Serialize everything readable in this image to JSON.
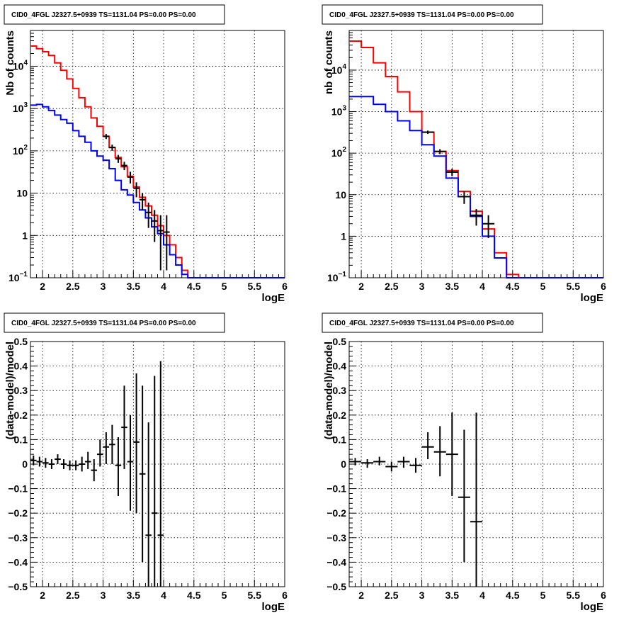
{
  "chart_data": [
    {
      "id": "top-left",
      "type": "line",
      "title": "CID0_4FGL J2327.5+0939 TS=1131.04 PS=0.00 PS=0.00",
      "xlabel": "logE",
      "ylabel": "Nb of counts",
      "xlim": [
        1.8,
        6.0
      ],
      "ylim": [
        0.1,
        70000
      ],
      "ylog": true,
      "grid": true,
      "xticks": [
        "2",
        "2.5",
        "3",
        "3.5",
        "4",
        "4.5",
        "5",
        "5.5",
        "6"
      ],
      "xtick_values": [
        2,
        2.5,
        3,
        3.5,
        4,
        4.5,
        5,
        5.5,
        6
      ],
      "yticks": [
        "10^-1",
        "1",
        "10",
        "10^2",
        "10^3",
        "10^4"
      ],
      "ytick_values": [
        0.1,
        1,
        10,
        100,
        1000,
        10000
      ],
      "series": [
        {
          "color": "#ff0000",
          "style": "hist",
          "edges": [
            1.8,
            1.9,
            2.0,
            2.1,
            2.2,
            2.3,
            2.4,
            2.5,
            2.6,
            2.7,
            2.8,
            2.9,
            3.0,
            3.1,
            3.2,
            3.3,
            3.4,
            3.5,
            3.6,
            3.7,
            3.8,
            3.9,
            4.0,
            4.1,
            4.2,
            4.3,
            4.4,
            4.5,
            4.6,
            4.7,
            4.8,
            4.9,
            5.0,
            5.1,
            5.2,
            5.3,
            5.4,
            5.5,
            5.6,
            5.7,
            5.8,
            5.9,
            6.0
          ],
          "values": [
            30000,
            26000,
            22000,
            18000,
            12000,
            8000,
            5000,
            3000,
            1800,
            1100,
            600,
            380,
            220,
            120,
            70,
            42,
            25,
            14,
            8,
            5,
            3,
            1.7,
            1.0,
            0.6,
            0.3,
            0.15,
            0.1,
            0.1,
            0.1,
            0.1,
            0.1,
            0.1,
            0.1,
            0.1,
            0.1,
            0.1,
            0.1,
            0.1,
            0.1,
            0.1,
            0.1,
            0.1
          ]
        },
        {
          "color": "#0000ff",
          "style": "hist",
          "edges": [
            1.8,
            1.9,
            2.0,
            2.1,
            2.2,
            2.3,
            2.4,
            2.5,
            2.6,
            2.7,
            2.8,
            2.9,
            3.0,
            3.1,
            3.2,
            3.3,
            3.4,
            3.5,
            3.6,
            3.7,
            3.8,
            3.9,
            4.0,
            4.1,
            4.2,
            4.3,
            4.4,
            4.5,
            4.6,
            4.7,
            4.8,
            4.9,
            5.0,
            5.1,
            5.2,
            5.3,
            5.4,
            5.5,
            5.6,
            5.7,
            5.8,
            5.9,
            6.0
          ],
          "values": [
            1200,
            1250,
            1100,
            900,
            700,
            550,
            450,
            300,
            220,
            160,
            100,
            75,
            60,
            38,
            20,
            12,
            9,
            6,
            4,
            2.6,
            1.6,
            1.1,
            0.6,
            0.35,
            0.2,
            0.12,
            0.1,
            0.1,
            0.1,
            0.1,
            0.1,
            0.1,
            0.1,
            0.1,
            0.1,
            0.1,
            0.1,
            0.1,
            0.1,
            0.1,
            0.1,
            0.1
          ]
        },
        {
          "color": "#000000",
          "style": "points",
          "x": [
            3.05,
            3.15,
            3.25,
            3.35,
            3.45,
            3.55,
            3.65,
            3.75,
            3.85,
            3.95,
            4.05
          ],
          "y": [
            220,
            120,
            65,
            45,
            24,
            13,
            7,
            3.5,
            2.2,
            1.3,
            1.2
          ],
          "ylo": [
            190,
            100,
            52,
            35,
            17,
            8,
            4,
            1.5,
            0.7,
            0.15,
            0.15
          ],
          "yhi": [
            250,
            140,
            80,
            55,
            32,
            18,
            10,
            6,
            4,
            3,
            3
          ],
          "xerr": 0.05
        }
      ]
    },
    {
      "id": "top-right",
      "type": "line",
      "title": "CID0_4FGL J2327.5+0939 TS=1131.04 PS=0.00 PS=0.00",
      "xlabel": "logE",
      "ylabel": "nb of counts",
      "xlim": [
        1.8,
        6.0
      ],
      "ylim": [
        0.1,
        90000
      ],
      "ylog": true,
      "grid": true,
      "xticks": [
        "2",
        "2.5",
        "3",
        "3.5",
        "4",
        "4.5",
        "5",
        "5.5",
        "6"
      ],
      "xtick_values": [
        2,
        2.5,
        3,
        3.5,
        4,
        4.5,
        5,
        5.5,
        6
      ],
      "yticks": [
        "10^-1",
        "1",
        "10",
        "10^2",
        "10^3",
        "10^4"
      ],
      "ytick_values": [
        0.1,
        1,
        10,
        100,
        1000,
        10000
      ],
      "series": [
        {
          "color": "#ff0000",
          "style": "hist",
          "edges": [
            1.8,
            2.0,
            2.2,
            2.4,
            2.6,
            2.8,
            3.0,
            3.2,
            3.4,
            3.6,
            3.8,
            4.0,
            4.2,
            4.4,
            4.6,
            4.8,
            5.0,
            5.2,
            5.4,
            5.6,
            5.8,
            6.0
          ],
          "values": [
            50000,
            35000,
            15000,
            7000,
            3000,
            1000,
            320,
            110,
            38,
            12,
            4,
            1.5,
            0.4,
            0.12,
            0.1,
            0.1,
            0.1,
            0.1,
            0.1,
            0.1,
            0.1
          ],
          "style_note": ""
        },
        {
          "color": "#0000ff",
          "style": "hist",
          "edges": [
            1.8,
            2.0,
            2.2,
            2.4,
            2.6,
            2.8,
            3.0,
            3.2,
            3.4,
            3.6,
            3.8,
            4.0,
            4.2,
            4.4,
            4.6,
            4.8,
            5.0,
            5.2,
            5.4,
            5.6,
            5.8,
            6.0
          ],
          "values": [
            2300,
            2300,
            1500,
            1000,
            600,
            350,
            160,
            85,
            25,
            9,
            3,
            1,
            0.3,
            0.1,
            0.1,
            0.1,
            0.1,
            0.1,
            0.1,
            0.1,
            0.1
          ]
        },
        {
          "color": "#000000",
          "style": "points",
          "x": [
            3.1,
            3.3,
            3.5,
            3.7,
            3.9,
            4.1
          ],
          "y": [
            320,
            110,
            35,
            9,
            3.2,
            2.0
          ],
          "ylo": [
            290,
            95,
            28,
            6,
            1.8,
            0.9
          ],
          "yhi": [
            350,
            125,
            42,
            12,
            4.5,
            3.2
          ],
          "xerr": 0.1
        }
      ]
    },
    {
      "id": "bottom-left",
      "type": "scatter",
      "title": "CID0_4FGL J2327.5+0939 TS=1131.04 PS=0.00 PS=0.00",
      "xlabel": "logE",
      "ylabel": "(data-model)/model",
      "xlim": [
        1.8,
        6.0
      ],
      "ylim": [
        -0.5,
        0.5
      ],
      "ylog": false,
      "grid": true,
      "xticks": [
        "2",
        "2.5",
        "3",
        "3.5",
        "4",
        "4.5",
        "5",
        "5.5",
        "6"
      ],
      "xtick_values": [
        2,
        2.5,
        3,
        3.5,
        4,
        4.5,
        5,
        5.5,
        6
      ],
      "yticks": [
        "-0.5",
        "-0.4",
        "-0.3",
        "-0.2",
        "-0.1",
        "0",
        "0.1",
        "0.2",
        "0.3",
        "0.4",
        "0.5"
      ],
      "ytick_values": [
        -0.5,
        -0.4,
        -0.3,
        -0.2,
        -0.1,
        0,
        0.1,
        0.2,
        0.3,
        0.4,
        0.5
      ],
      "series": [
        {
          "color": "#000000",
          "style": "points",
          "x": [
            1.85,
            1.95,
            2.05,
            2.15,
            2.25,
            2.35,
            2.45,
            2.55,
            2.65,
            2.75,
            2.85,
            2.95,
            3.05,
            3.15,
            3.25,
            3.35,
            3.45,
            3.55,
            3.65,
            3.75,
            3.85,
            3.95
          ],
          "y": [
            0.015,
            0.01,
            0.005,
            0.0,
            0.02,
            0.0,
            -0.005,
            -0.005,
            0.0,
            0.01,
            -0.025,
            0.04,
            0.07,
            0.08,
            -0.005,
            0.15,
            0.01,
            0.09,
            -0.04,
            -0.29,
            -0.2,
            -0.29
          ],
          "ylo": [
            -0.005,
            -0.01,
            -0.015,
            -0.02,
            0.0,
            -0.02,
            -0.025,
            -0.025,
            -0.03,
            -0.02,
            -0.07,
            -0.01,
            0.0,
            0.0,
            -0.13,
            -0.02,
            -0.19,
            -0.2,
            -0.4,
            -0.5,
            -0.5,
            -0.5
          ],
          "yhi": [
            0.035,
            0.03,
            0.025,
            0.02,
            0.04,
            0.02,
            0.015,
            0.015,
            0.03,
            0.05,
            0.02,
            0.1,
            0.13,
            0.16,
            0.11,
            0.32,
            0.2,
            0.37,
            0.32,
            0.17,
            0.36,
            0.42
          ],
          "xerr": 0.05
        }
      ]
    },
    {
      "id": "bottom-right",
      "type": "scatter",
      "title": "CID0_4FGL J2327.5+0939 TS=1131.04 PS=0.00 PS=0.00",
      "xlabel": "logE",
      "ylabel": "(data-model)/model",
      "xlim": [
        1.8,
        6.0
      ],
      "ylim": [
        -0.5,
        0.5
      ],
      "ylog": false,
      "grid": true,
      "xticks": [
        "2",
        "2.5",
        "3",
        "3.5",
        "4",
        "4.5",
        "5",
        "5.5",
        "6"
      ],
      "xtick_values": [
        2,
        2.5,
        3,
        3.5,
        4,
        4.5,
        5,
        5.5,
        6
      ],
      "yticks": [
        "-0.5",
        "-0.4",
        "-0.3",
        "-0.2",
        "-0.1",
        "0",
        "0.1",
        "0.2",
        "0.3",
        "0.4",
        "0.5"
      ],
      "ytick_values": [
        -0.5,
        -0.4,
        -0.3,
        -0.2,
        -0.1,
        0,
        0.1,
        0.2,
        0.3,
        0.4,
        0.5
      ],
      "series": [
        {
          "color": "#000000",
          "style": "points",
          "x": [
            1.9,
            2.1,
            2.3,
            2.5,
            2.7,
            2.9,
            3.1,
            3.3,
            3.5,
            3.7,
            3.9
          ],
          "y": [
            0.01,
            0.005,
            0.01,
            -0.01,
            0.01,
            -0.005,
            0.07,
            0.05,
            0.04,
            -0.135,
            -0.235
          ],
          "ylo": [
            -0.005,
            -0.015,
            -0.005,
            -0.03,
            -0.015,
            -0.035,
            0.02,
            -0.05,
            -0.13,
            -0.4,
            -0.5
          ],
          "yhi": [
            0.025,
            0.02,
            0.03,
            0.01,
            0.03,
            0.025,
            0.13,
            0.155,
            0.21,
            0.14,
            0.21
          ],
          "xerr": 0.1
        }
      ]
    }
  ]
}
